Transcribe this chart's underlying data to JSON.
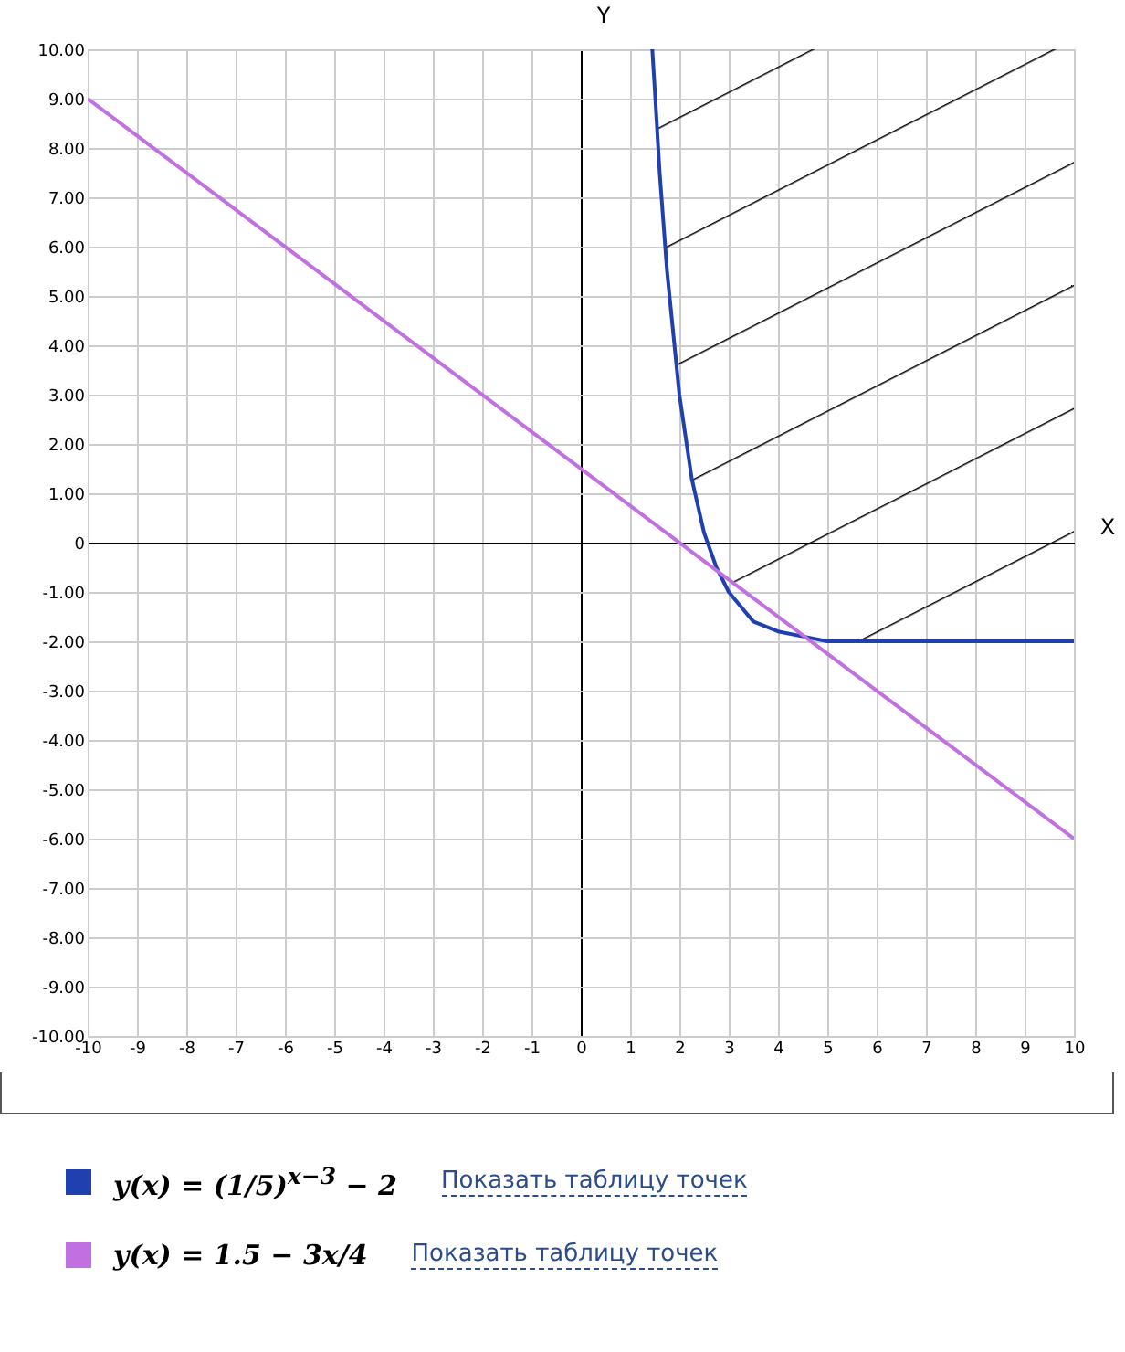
{
  "chart_data": {
    "type": "line",
    "xlabel": "X",
    "ylabel": "Y",
    "xlim": [
      -10,
      10
    ],
    "ylim": [
      -10,
      10
    ],
    "xticks": [
      -10,
      -9,
      -8,
      -7,
      -6,
      -5,
      -4,
      -3,
      -2,
      -1,
      0,
      1,
      2,
      3,
      4,
      5,
      6,
      7,
      8,
      9,
      10
    ],
    "yticks": [
      {
        "value": -10,
        "label": "-10.00"
      },
      {
        "value": -9,
        "label": "-9.00"
      },
      {
        "value": -8,
        "label": "-8.00"
      },
      {
        "value": -7,
        "label": "-7.00"
      },
      {
        "value": -6,
        "label": "-6.00"
      },
      {
        "value": -5,
        "label": "-5.00"
      },
      {
        "value": -4,
        "label": "-4.00"
      },
      {
        "value": -3,
        "label": "-3.00"
      },
      {
        "value": -2,
        "label": "-2.00"
      },
      {
        "value": -1,
        "label": "-1.00"
      },
      {
        "value": 0,
        "label": "0"
      },
      {
        "value": 1,
        "label": "1.00"
      },
      {
        "value": 2,
        "label": "2.00"
      },
      {
        "value": 3,
        "label": "3.00"
      },
      {
        "value": 4,
        "label": "4.00"
      },
      {
        "value": 5,
        "label": "5.00"
      },
      {
        "value": 6,
        "label": "6.00"
      },
      {
        "value": 7,
        "label": "7.00"
      },
      {
        "value": 8,
        "label": "8.00"
      },
      {
        "value": 9,
        "label": "9.00"
      },
      {
        "value": 10,
        "label": "10.00"
      }
    ],
    "grid": true,
    "legend": "bottom",
    "series": [
      {
        "name": "y(x) = (1/5)$^{x−3}$ − 2",
        "color": "#2040b0",
        "x": [
          1.45,
          1.5,
          1.6,
          1.75,
          2,
          2.25,
          2.5,
          2.75,
          3,
          3.25,
          3.5,
          4,
          4.5,
          5,
          6,
          7,
          8,
          10
        ],
        "values": [
          10,
          9.2,
          7.5,
          5.5,
          3,
          1.3,
          0.2,
          -0.5,
          -1,
          -1.3,
          -1.6,
          -1.8,
          -1.9,
          -2,
          -2,
          -2,
          -2,
          -2
        ],
        "lower": [
          10,
          9.2,
          7.5,
          5.5,
          3,
          1.3,
          0.2,
          -0.5,
          -0.8,
          -0.9,
          -1.1,
          -1.5,
          -1.9,
          -2,
          -2,
          -2,
          -2,
          -2
        ],
        "upper": [
          10,
          10,
          10,
          10,
          10,
          10,
          10,
          10,
          10,
          10,
          10,
          10,
          10,
          10,
          10,
          10,
          10,
          10
        ]
      },
      {
        "name": "y(x) = 1.5 − 3x/4",
        "color": "#c070e0",
        "x": [
          -10,
          10
        ],
        "values": [
          9,
          -6
        ]
      }
    ],
    "annotations": [
      "Показать таблицу точек",
      "Показать таблицу точек"
    ]
  }
}
